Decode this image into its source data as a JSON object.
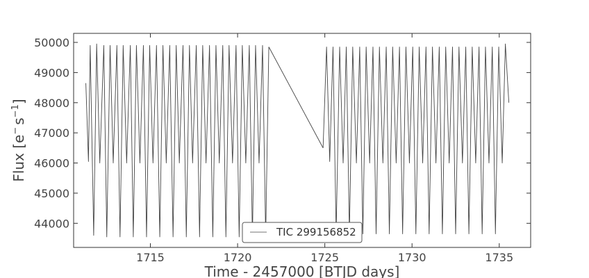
{
  "chart_data": {
    "type": "line",
    "title": "",
    "xlabel": "Time - 2457000 [BTJD days]",
    "ylabel_main": "Flux [e",
    "ylabel_sup1": "−",
    "ylabel_mid": "s",
    "ylabel_sup2": "−1",
    "ylabel_end": "]",
    "xlim": [
      1710.6,
      1736.8
    ],
    "ylim": [
      43200,
      50300
    ],
    "x_ticks": [
      1715,
      1720,
      1725,
      1730,
      1735
    ],
    "y_ticks": [
      44000,
      45000,
      46000,
      47000,
      48000,
      49000,
      50000
    ],
    "x_tick_labels": [
      "1715",
      "1720",
      "1725",
      "1730",
      "1735"
    ],
    "y_tick_labels": [
      "44000",
      "45000",
      "46000",
      "47000",
      "48000",
      "49000",
      "50000"
    ],
    "grid": false,
    "legend_position": "bottom-center",
    "line_color": "#444444",
    "series": [
      {
        "name": "TIC 299156852",
        "segments": [
          {
            "x": [
              1711.3,
              1711.45,
              1711.55,
              1711.75,
              1711.92,
              1712.1,
              1712.33,
              1712.5,
              1712.69,
              1712.87,
              1713.08,
              1713.26,
              1713.44,
              1713.64,
              1713.85,
              1714.02,
              1714.2,
              1714.4,
              1714.6,
              1714.78,
              1714.96,
              1715.15,
              1715.35,
              1715.54,
              1715.72,
              1715.91,
              1716.11,
              1716.3,
              1716.48,
              1716.66,
              1716.87,
              1717.06,
              1717.24,
              1717.42,
              1717.63,
              1717.82,
              1718.0,
              1718.19,
              1718.39,
              1718.58,
              1718.76,
              1718.95,
              1719.15,
              1719.33,
              1719.51,
              1719.71,
              1719.91,
              1720.09,
              1720.27,
              1720.47,
              1720.67,
              1720.85,
              1721.03,
              1721.23,
              1721.43,
              1721.61,
              1721.79
            ],
            "y": [
              48650,
              46050,
              49900,
              43600,
              49950,
              46000,
              49900,
              43550,
              49900,
              46000,
              49900,
              43550,
              49900,
              46000,
              49900,
              43550,
              49900,
              46000,
              49900,
              43550,
              49900,
              46000,
              49900,
              43550,
              49900,
              46000,
              49900,
              43550,
              49900,
              46000,
              49900,
              43550,
              49900,
              46000,
              49900,
              43550,
              49900,
              46000,
              49900,
              43550,
              49900,
              46000,
              49900,
              43550,
              49900,
              46000,
              49900,
              43550,
              49900,
              46000,
              49900,
              43550,
              49900,
              46000,
              49900,
              43550,
              49850
            ]
          },
          {
            "x": [
              1721.79,
              1724.9
            ],
            "y": [
              49850,
              46500
            ]
          },
          {
            "x": [
              1724.9,
              1725.1,
              1725.28,
              1725.47,
              1725.65,
              1725.85,
              1726.05,
              1726.23,
              1726.41,
              1726.6,
              1726.81,
              1727.0,
              1727.18,
              1727.37,
              1727.57,
              1727.76,
              1727.94,
              1728.13,
              1728.33,
              1728.52,
              1728.7,
              1728.89,
              1729.09,
              1729.28,
              1729.46,
              1729.65,
              1729.85,
              1730.04,
              1730.22,
              1730.41,
              1730.61,
              1730.8,
              1730.98,
              1731.17,
              1731.37,
              1731.56,
              1731.74,
              1731.93,
              1732.13,
              1732.32,
              1732.5,
              1732.69,
              1732.89,
              1733.08,
              1733.26,
              1733.45,
              1733.65,
              1733.84,
              1734.02,
              1734.21,
              1734.41,
              1734.6,
              1734.78,
              1734.97,
              1735.17,
              1735.35,
              1735.55
            ],
            "y": [
              46500,
              49850,
              46050,
              49850,
              43650,
              49850,
              46000,
              49850,
              43650,
              49850,
              46000,
              49850,
              43650,
              49850,
              46000,
              49850,
              43650,
              49850,
              46000,
              49850,
              43650,
              49850,
              46000,
              49850,
              43650,
              49850,
              46000,
              49850,
              43650,
              49850,
              46000,
              49850,
              43650,
              49850,
              46000,
              49850,
              43650,
              49850,
              46000,
              49850,
              43650,
              49850,
              46000,
              49850,
              43650,
              49850,
              46000,
              49850,
              43650,
              49850,
              46000,
              49850,
              43650,
              49850,
              46000,
              49950,
              48000
            ]
          }
        ]
      }
    ]
  }
}
